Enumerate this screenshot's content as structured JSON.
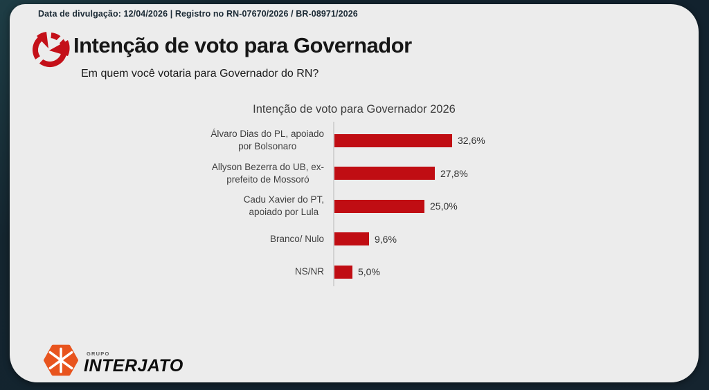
{
  "banner": {
    "text": "Data de divulgação: 12/04/2026 | Registro no RN-07670/2026 / BR-08971/2026"
  },
  "header": {
    "title": "Intenção de voto para Governador",
    "subtitle": "Em quem você votaria para Governador do RN?",
    "logo_color": "#c41019"
  },
  "chart_data": {
    "type": "bar",
    "orientation": "horizontal",
    "title": "Intenção de voto para Governador 2026",
    "categories": [
      "Álvaro Dias do PL, apoiado por Bolsonaro",
      "Allyson Bezerra do UB, ex-prefeito de Mossoró",
      "Cadu Xavier do PT, apoiado por Lula",
      "Branco/ Nulo",
      "NS/NR"
    ],
    "label_lines": [
      [
        "Álvaro Dias do PL, apoiado",
        "por Bolsonaro"
      ],
      [
        "Allyson Bezerra do UB, ex-",
        "prefeito de Mossoró"
      ],
      [
        "Cadu Xavier do PT,",
        "apoiado por Lula"
      ],
      [
        "Branco/ Nulo"
      ],
      [
        "NS/NR"
      ]
    ],
    "values": [
      32.6,
      27.8,
      25.0,
      9.6,
      5.0
    ],
    "value_labels": [
      "32,6%",
      "27,8%",
      "25,0%",
      "9,6%",
      "5,0%"
    ],
    "bar_color": "#c00d13",
    "xlim": [
      0,
      35
    ],
    "grid": false,
    "legend": false
  },
  "footer": {
    "logo_group": "GRUPO",
    "logo_name": "INTERJATO",
    "logo_color": "#e8541e"
  }
}
